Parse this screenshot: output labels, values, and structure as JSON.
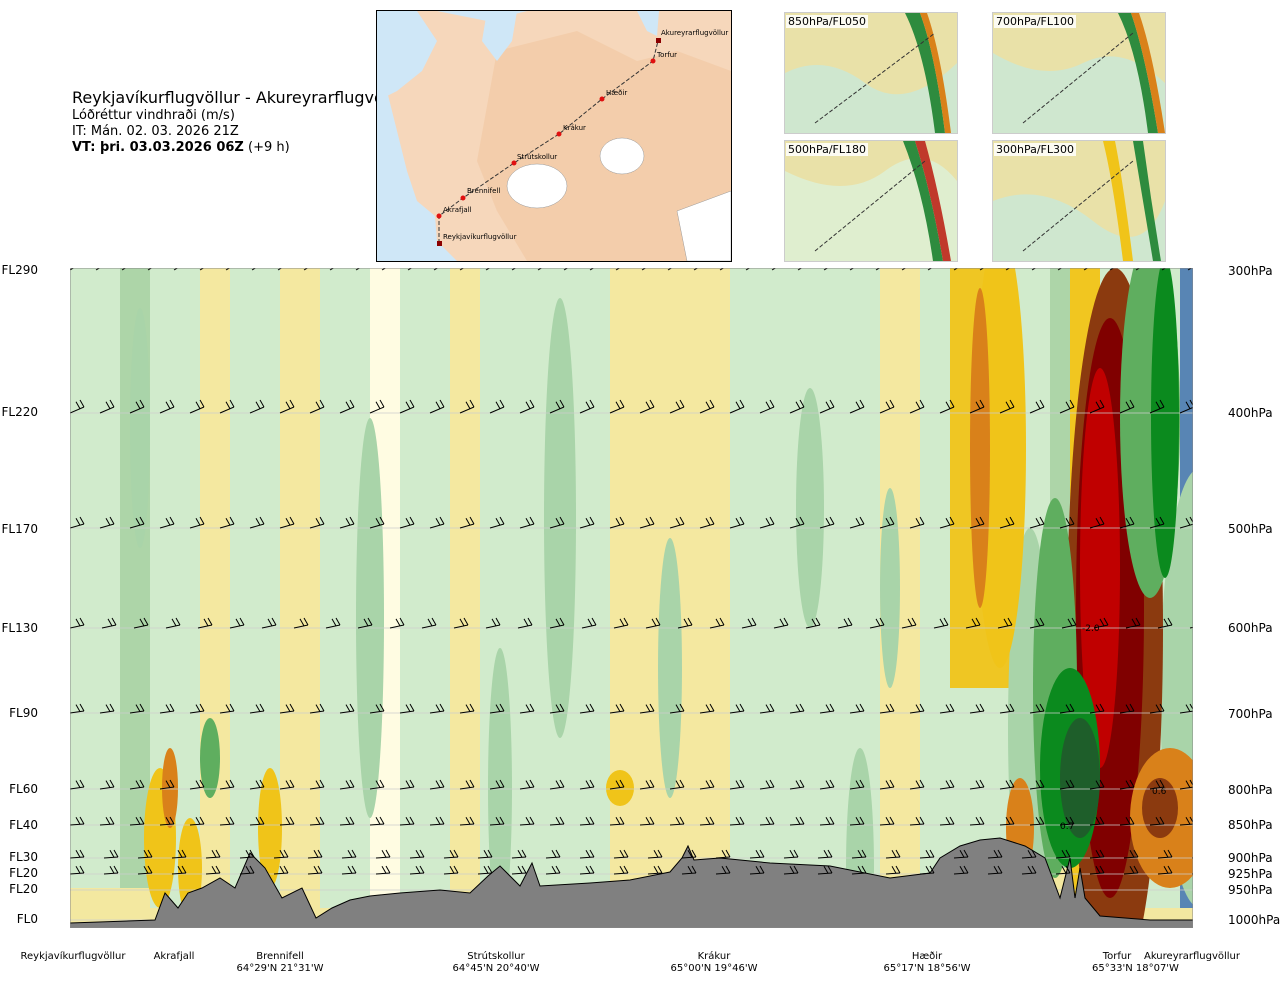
{
  "header": {
    "title": "Reykjavíkurflugvöllur - Akureyrarflugvöllur",
    "variable": "Lóðréttur vindhraði (m/s)",
    "issue_time": "IT: Mán. 02. 03. 2026 21Z",
    "valid_time_bold": "VT: þri. 03.03.2026 06Z",
    "valid_time_offset": "(+9 h)"
  },
  "map": {
    "labels": [
      "Akureyrarflugvöllur",
      "Torfur",
      "Hæðir",
      "Krákur",
      "Strútskollur",
      "Brennifell",
      "Akrafjall",
      "Reykjavíkurflugvöllur"
    ],
    "colors": {
      "sea": "#cfe7f7",
      "land": "#f6d7bb",
      "ice": "#ffffff",
      "route": "#333333",
      "point": "#e01010"
    }
  },
  "insets": [
    {
      "label": "850hPa/FL050"
    },
    {
      "label": "700hPa/FL100"
    },
    {
      "label": "500hPa/FL180"
    },
    {
      "label": "300hPa/FL300"
    }
  ],
  "chart_data": {
    "type": "heatmap",
    "description_units": "m/s",
    "x_labels": [
      {
        "name": "Reykjavíkurflugvöllur",
        "coord": ""
      },
      {
        "name": "Akrafjall",
        "coord": ""
      },
      {
        "name": "Brennifell",
        "coord": "64°29'N 21°31'W"
      },
      {
        "name": "Strútskollur",
        "coord": "64°45'N 20°40'W"
      },
      {
        "name": "Krákur",
        "coord": "65°00'N 19°46'W"
      },
      {
        "name": "Hæðir",
        "coord": "65°17'N 18°56'W"
      },
      {
        "name": "Torfur",
        "coord": "65°33'N 18°07'W"
      },
      {
        "name": "Akureyrarflugvöllur",
        "coord": ""
      }
    ],
    "flight_levels": [
      "FL290",
      "FL220",
      "FL170",
      "FL130",
      "FL90",
      "FL60",
      "FL40",
      "FL30",
      "FL20",
      "FL20",
      "FL0"
    ],
    "pressure_levels": [
      "300hPa",
      "400hPa",
      "500hPa",
      "600hPa",
      "700hPa",
      "800hPa",
      "850hPa",
      "900hPa",
      "925hPa",
      "950hPa",
      "1000hPa"
    ],
    "pressure_values_hpa": [
      300,
      400,
      500,
      600,
      700,
      800,
      850,
      900,
      925,
      950,
      1000
    ],
    "annotations": [
      "-2.0",
      "0.7",
      "0.6"
    ],
    "colors": {
      "strong_down": "#800000",
      "down3": "#c00000",
      "down2": "#8b3a0f",
      "down1": "#d9811a",
      "weak_down2": "#f0c419",
      "weak_down": "#f3e8a0",
      "near_zero": "#fffde6",
      "weak_up": "#cfebcf",
      "up1": "#a9d4a9",
      "up2": "#5fae5f",
      "up3": "#0b8a1e",
      "up4": "#1e5e2a",
      "strong_up": "#4f7fb5",
      "terrain": "#808080"
    }
  }
}
